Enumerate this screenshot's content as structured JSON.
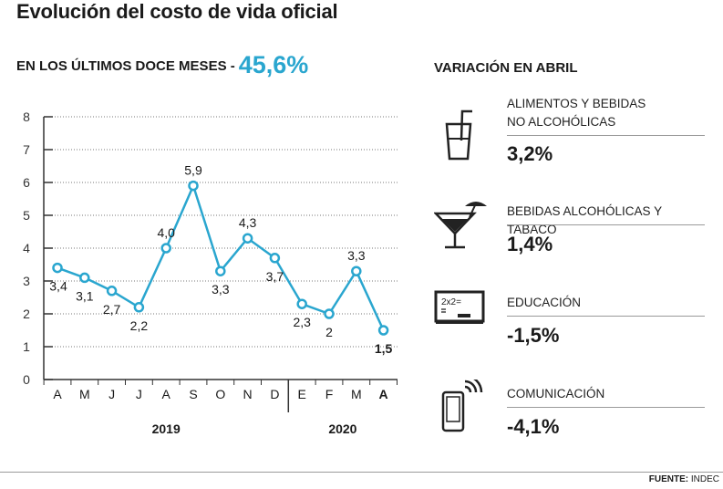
{
  "title": "Evolución del costo de vida oficial",
  "subhead": {
    "label": "EN LOS ÚLTIMOS DOCE MESES -",
    "value": "45,6%"
  },
  "right_heading": "VARIACIÓN EN ABRIL",
  "categories": [
    {
      "label_lines": [
        "ALIMENTOS Y BEBIDAS",
        "NO ALCOHÓLICAS"
      ],
      "value": "3,2%",
      "icon": "drink-glass-icon"
    },
    {
      "label_lines": [
        "BEBIDAS ALCOHÓLICAS Y TABACO"
      ],
      "value": "1,4%",
      "icon": "cocktail-icon"
    },
    {
      "label_lines": [
        "EDUCACIÓN"
      ],
      "value": "-1,5%",
      "icon": "chalkboard-icon"
    },
    {
      "label_lines": [
        "COMUNICACIÓN"
      ],
      "value": "-4,1%",
      "icon": "phone-icon"
    }
  ],
  "source": {
    "label": "FUENTE:",
    "value": "INDEC"
  },
  "colors": {
    "accent": "#2aa6cf",
    "point_fill": "#ffffff",
    "text": "#1a1a1a",
    "axis": "#333333"
  },
  "chart_data": {
    "type": "line",
    "categories": [
      "A",
      "M",
      "J",
      "J",
      "A",
      "S",
      "O",
      "N",
      "D",
      "E",
      "F",
      "M",
      "A"
    ],
    "highlighted_category": 12,
    "values": [
      3.4,
      3.1,
      2.7,
      2.2,
      4.0,
      5.9,
      3.3,
      4.3,
      3.7,
      2.3,
      2.0,
      3.3,
      1.5
    ],
    "data_labels": [
      "3,4",
      "3,1",
      "2,7",
      "2,2",
      "4,0",
      "5,9",
      "3,3",
      "4,3",
      "3,7",
      "2,3",
      "2",
      "3,3",
      "1,5"
    ],
    "yticks": [
      "0",
      "1",
      "2",
      "3",
      "4",
      "5",
      "6",
      "7",
      "8"
    ],
    "ylim": [
      0,
      8
    ],
    "year_groups": [
      {
        "label": "2019",
        "from": 0,
        "to": 8
      },
      {
        "label": "2020",
        "from": 9,
        "to": 12
      }
    ],
    "grid": "dotted horizontal",
    "legend": "none"
  }
}
